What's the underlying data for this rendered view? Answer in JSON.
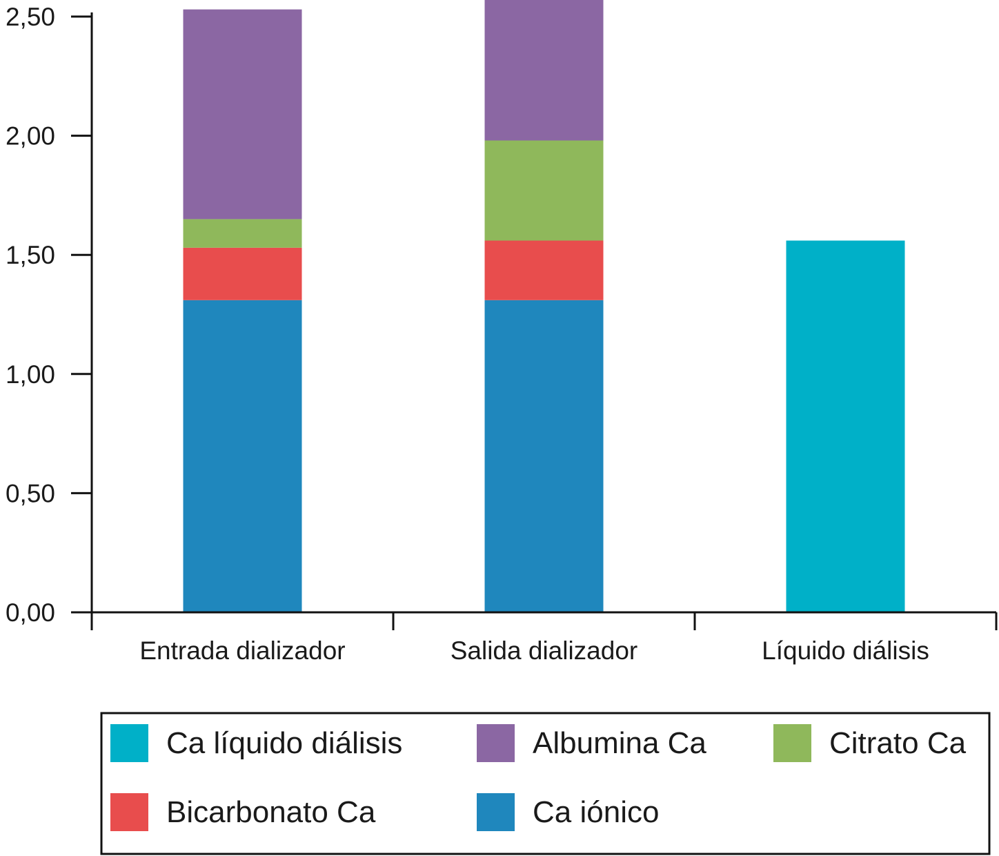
{
  "chart_data": {
    "type": "bar",
    "stacked": true,
    "categories": [
      "Entrada dializador",
      "Salida dializador",
      "Líquido diálisis"
    ],
    "ylim": [
      0,
      2.5
    ],
    "yticks": [
      0,
      0.5,
      1.0,
      1.5,
      2.0,
      2.5
    ],
    "ytick_labels": [
      "0,00",
      "0,50",
      "1,00",
      "1,50",
      "2,00",
      "2,50"
    ],
    "series": [
      {
        "name": "Ca iónico",
        "color": "#1f87bd",
        "values": [
          1.31,
          1.31,
          0
        ]
      },
      {
        "name": "Bicarbonato Ca",
        "color": "#e84d4d",
        "values": [
          0.22,
          0.25,
          0
        ]
      },
      {
        "name": "Citrato Ca",
        "color": "#8fb85b",
        "values": [
          0.12,
          0.42,
          0
        ]
      },
      {
        "name": "Albumina Ca",
        "color": "#8b67a3",
        "values": [
          0.88,
          0.6,
          0
        ]
      },
      {
        "name": "Ca líquido diálisis",
        "color": "#00b0c8",
        "values": [
          0,
          0,
          1.56
        ]
      }
    ],
    "legend": {
      "position": "bottom",
      "order": [
        "Ca líquido diálisis",
        "Albumina Ca",
        "Citrato Ca",
        "Bicarbonato Ca",
        "Ca iónico"
      ]
    },
    "grid": false
  }
}
